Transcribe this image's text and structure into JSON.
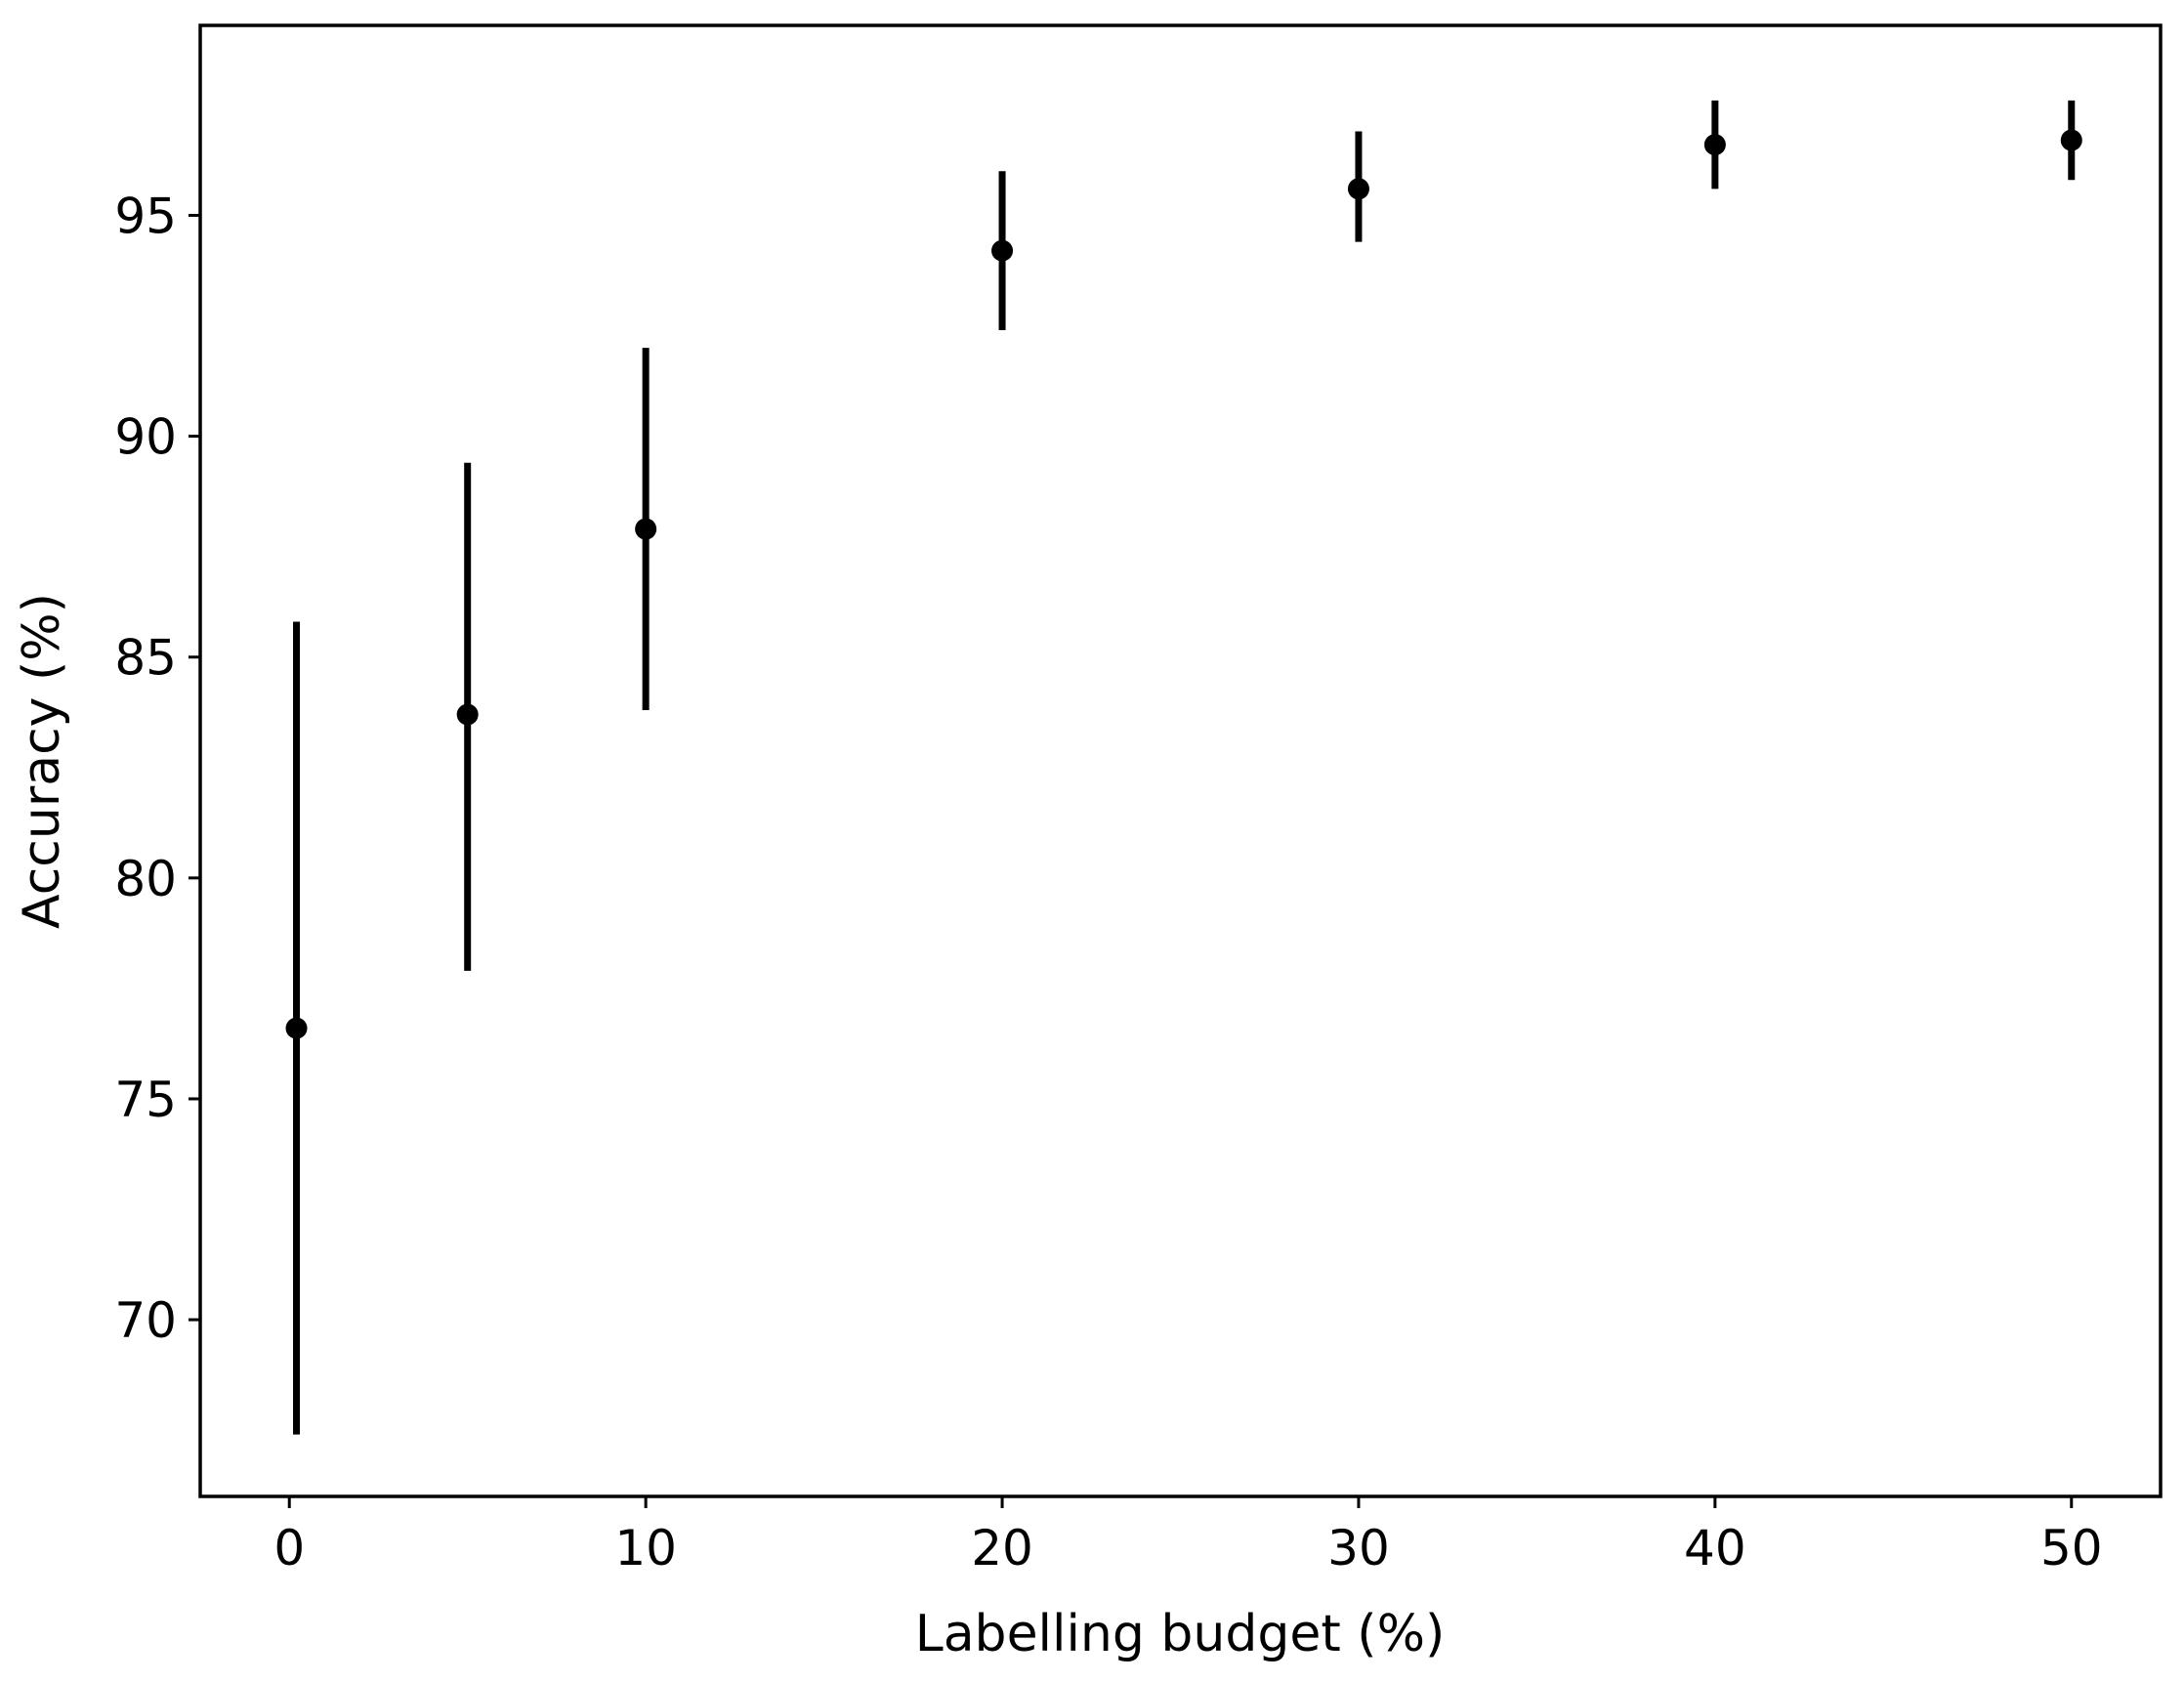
{
  "chart_data": {
    "type": "scatter",
    "title": "",
    "xlabel": "Labelling budget (%)",
    "ylabel": "Accuracy (%)",
    "xlim": [
      -2.5,
      52.5
    ],
    "ylim": [
      66.0,
      99.3
    ],
    "xticks": [
      0,
      10,
      20,
      30,
      40,
      50
    ],
    "xtick_labels": [
      "0",
      "10",
      "20",
      "30",
      "40",
      "50"
    ],
    "yticks": [
      70,
      75,
      80,
      85,
      90,
      95
    ],
    "ytick_labels": [
      "70",
      "75",
      "80",
      "85",
      "90",
      "95"
    ],
    "grid": false,
    "legend": "none",
    "marker_color": "#000000",
    "series": [
      {
        "points": [
          {
            "x": 0.2,
            "y": 76.6,
            "lower": 67.4,
            "upper": 85.8
          },
          {
            "x": 5,
            "y": 83.7,
            "lower": 77.9,
            "upper": 89.4
          },
          {
            "x": 10,
            "y": 87.9,
            "lower": 83.8,
            "upper": 92.0
          },
          {
            "x": 20,
            "y": 94.2,
            "lower": 92.4,
            "upper": 96.0
          },
          {
            "x": 30,
            "y": 95.6,
            "lower": 94.4,
            "upper": 96.9
          },
          {
            "x": 40,
            "y": 96.6,
            "lower": 95.6,
            "upper": 97.6
          },
          {
            "x": 50,
            "y": 96.7,
            "lower": 95.8,
            "upper": 97.6
          }
        ]
      }
    ]
  }
}
